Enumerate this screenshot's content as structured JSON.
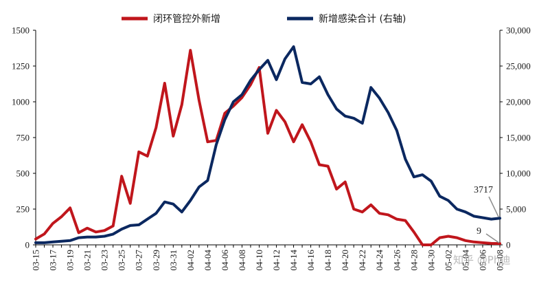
{
  "chart_data": {
    "type": "line",
    "legend_position": "top",
    "grid": false,
    "y_left_ticks": [
      "0",
      "250",
      "500",
      "750",
      "1000",
      "1250",
      "1500"
    ],
    "y_right_ticks": [
      "0",
      "5,000",
      "10,000",
      "15,000",
      "20,000",
      "25,000",
      "30,000"
    ],
    "ylim_left": [
      0,
      1500
    ],
    "ylim_right": [
      0,
      30000
    ],
    "x_tick_labels": [
      "03-15",
      "03-17",
      "03-19",
      "03-21",
      "03-23",
      "03-25",
      "03-27",
      "03-29",
      "03-31",
      "04-02",
      "04-04",
      "04-06",
      "04-08",
      "04-10",
      "04-12",
      "04-14",
      "04-16",
      "04-18",
      "04-20",
      "04-22",
      "04-24",
      "04-26",
      "04-28",
      "04-30",
      "05-02",
      "05-04",
      "05-06",
      "05-08"
    ],
    "series": [
      {
        "name": "闭环管控外新增",
        "axis": "left",
        "color": "#c0161c",
        "values": [
          41,
          76,
          150,
          197,
          258,
          85,
          117,
          90,
          100,
          132,
          480,
          290,
          650,
          620,
          820,
          1130,
          760,
          980,
          1360,
          1010,
          720,
          730,
          920,
          970,
          1030,
          1120,
          1240,
          780,
          940,
          860,
          720,
          840,
          720,
          560,
          550,
          390,
          440,
          250,
          230,
          280,
          220,
          210,
          180,
          170,
          90,
          0,
          0,
          50,
          60,
          50,
          30,
          20,
          15,
          10,
          9
        ]
      },
      {
        "name": "新增感染合计 (右轴)",
        "axis": "right",
        "color": "#0b2860",
        "values": [
          300,
          300,
          400,
          500,
          600,
          1000,
          1100,
          1100,
          1200,
          1500,
          2200,
          2700,
          2800,
          3600,
          4400,
          6000,
          5700,
          4600,
          6200,
          8100,
          9000,
          14000,
          17500,
          20000,
          21000,
          23000,
          24500,
          25800,
          23100,
          26000,
          27700,
          22700,
          22500,
          23500,
          21000,
          19000,
          18000,
          17700,
          17000,
          22000,
          20500,
          18500,
          16000,
          12000,
          9500,
          9800,
          8900,
          6800,
          6200,
          5000,
          4600,
          4000,
          3800,
          3600,
          3717
        ]
      }
    ],
    "annotations": [
      {
        "label": "3717",
        "series": "新增感染合计 (右轴)"
      },
      {
        "label": "9",
        "series": "闭环管控外新增"
      }
    ],
    "watermark": "知乎 @Ph迪"
  }
}
